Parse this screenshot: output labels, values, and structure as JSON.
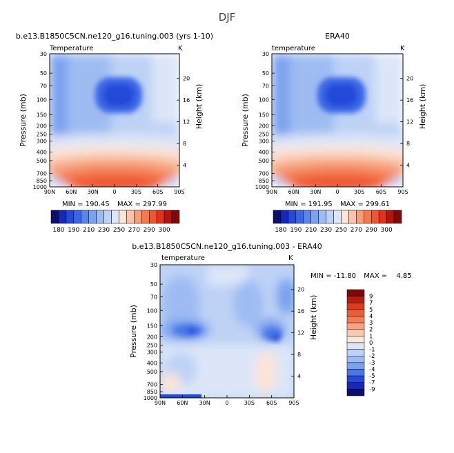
{
  "figure": {
    "season": "DJF",
    "panel_titles": [
      "b.e13.B1850C5CN.ne120_g16.tuning.003 (yrs 1-10)",
      "ERA40",
      "b.e13.B1850C5CN.ne120_g16.tuning.003 - ERA40"
    ],
    "subtitles": [
      "Temperature",
      "temperature",
      "temperature"
    ],
    "unit": "K",
    "y_label": "Pressure (mb)",
    "y2_label": "Height (km)",
    "minmax": [
      {
        "min_label": "MIN =",
        "min": "190.45",
        "max_label": "MAX =",
        "max": "297.99"
      },
      {
        "min_label": "MIN =",
        "min": "191.95",
        "max_label": "MAX =",
        "max": "299.61"
      },
      {
        "min_label": "MIN =",
        "min": "-11.80",
        "max_label": "MAX =",
        "max": "4.85"
      }
    ]
  },
  "chart_data": [
    {
      "type": "heatmap",
      "title": "b.e13.B1850C5CN.ne120_g16.tuning.003 (yrs 1-10)",
      "subtitle": "Temperature",
      "unit": "K",
      "ylabel": "Pressure (mb)",
      "y2label": "Height (km)",
      "x_ticks": [
        "90N",
        "60N",
        "30N",
        "0",
        "30S",
        "60S",
        "90S"
      ],
      "y_ticks": [
        "30",
        "50",
        "70",
        "100",
        "150",
        "200",
        "250",
        "300",
        "400",
        "500",
        "700",
        "850",
        "1000"
      ],
      "y2_ticks": [
        "20",
        "16",
        "12",
        "8",
        "4"
      ],
      "ylim": [
        30,
        1000
      ],
      "y_scale": "log",
      "min": 190.45,
      "max": 297.99,
      "colorbar_levels": [
        180,
        185,
        190,
        195,
        200,
        205,
        210,
        220,
        230,
        240,
        250,
        260,
        270,
        280,
        290,
        295,
        300
      ],
      "colorbar_labels": [
        "180",
        "190",
        "210",
        "230",
        "250",
        "270",
        "290",
        "300"
      ]
    },
    {
      "type": "heatmap",
      "title": "ERA40",
      "subtitle": "temperature",
      "unit": "K",
      "ylabel": "Pressure (mb)",
      "y2label": "Height (km)",
      "x_ticks": [
        "90N",
        "60N",
        "30N",
        "0",
        "30S",
        "60S",
        "90S"
      ],
      "y_ticks": [
        "30",
        "50",
        "70",
        "100",
        "150",
        "200",
        "250",
        "300",
        "400",
        "500",
        "700",
        "850",
        "1000"
      ],
      "y2_ticks": [
        "20",
        "16",
        "12",
        "8",
        "4"
      ],
      "ylim": [
        30,
        1000
      ],
      "y_scale": "log",
      "min": 191.95,
      "max": 299.61,
      "colorbar_levels": [
        180,
        185,
        190,
        195,
        200,
        205,
        210,
        220,
        230,
        240,
        250,
        260,
        270,
        280,
        290,
        295,
        300
      ],
      "colorbar_labels": [
        "180",
        "190",
        "210",
        "230",
        "250",
        "270",
        "290",
        "300"
      ]
    },
    {
      "type": "heatmap",
      "title": "b.e13.B1850C5CN.ne120_g16.tuning.003 - ERA40",
      "subtitle": "temperature",
      "unit": "K",
      "ylabel": "Pressure (mb)",
      "y2label": "Height (km)",
      "x_ticks": [
        "90N",
        "60N",
        "30N",
        "0",
        "30S",
        "60S",
        "90S"
      ],
      "y_ticks": [
        "30",
        "50",
        "70",
        "100",
        "150",
        "200",
        "250",
        "300",
        "400",
        "500",
        "700",
        "850",
        "1000"
      ],
      "y2_ticks": [
        "20",
        "16",
        "12",
        "8",
        "4"
      ],
      "ylim": [
        30,
        1000
      ],
      "y_scale": "log",
      "min": -11.8,
      "max": 4.85,
      "colorbar_levels": [
        9,
        7,
        5,
        4,
        3,
        2,
        1,
        0,
        -1,
        -2,
        -3,
        -4,
        -5,
        -7,
        -9
      ],
      "colorbar_labels": [
        "9",
        "7",
        "5",
        "4",
        "3",
        "2",
        "1",
        "0",
        "-1",
        "-2",
        "-3",
        "-4",
        "-5",
        "-7",
        "-9"
      ]
    }
  ],
  "colors": {
    "temp_scale": [
      "#0a0e6e",
      "#1728b8",
      "#2448d8",
      "#3a66e6",
      "#5a86ea",
      "#7ca2ee",
      "#9ebcf2",
      "#bed2f6",
      "#dce6f8",
      "#fbe4d8",
      "#f9c4a8",
      "#f79e78",
      "#f37a50",
      "#ee5530",
      "#e2321a",
      "#b31410",
      "#7c0808"
    ],
    "diff_scale": [
      "#7c0808",
      "#b51c12",
      "#dd3a1f",
      "#ef5a38",
      "#f37c56",
      "#f7a282",
      "#fac8ac",
      "#fbe6dc",
      "#dce6f8",
      "#bed2f6",
      "#9ebcf2",
      "#7ca2ee",
      "#4c78e6",
      "#2448d8",
      "#1728b8",
      "#0a0e6e"
    ]
  }
}
